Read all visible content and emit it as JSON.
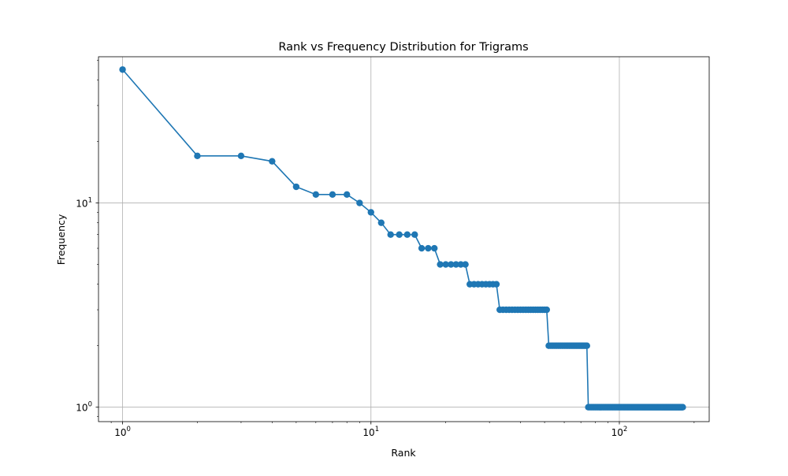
{
  "chart_data": {
    "type": "line",
    "title": "Rank vs Frequency Distribution for Trigrams",
    "xlabel": "Rank",
    "ylabel": "Frequency",
    "xscale": "log",
    "yscale": "log",
    "xlim": [
      0.8,
      230
    ],
    "ylim": [
      0.85,
      52
    ],
    "grid": true,
    "marker": "circle",
    "series_color": "#1f77b4",
    "x_ticks": [
      {
        "value": 1,
        "base": "10",
        "exp": "0"
      },
      {
        "value": 10,
        "base": "10",
        "exp": "1"
      },
      {
        "value": 100,
        "base": "10",
        "exp": "2"
      }
    ],
    "y_ticks": [
      {
        "value": 1,
        "base": "10",
        "exp": "0"
      },
      {
        "value": 10,
        "base": "10",
        "exp": "1"
      }
    ],
    "series": [
      {
        "runs": [
          {
            "from": 1,
            "to": 1,
            "y": 45
          },
          {
            "from": 2,
            "to": 3,
            "y": 17
          },
          {
            "from": 4,
            "to": 4,
            "y": 16
          },
          {
            "from": 5,
            "to": 5,
            "y": 12
          },
          {
            "from": 6,
            "to": 8,
            "y": 11
          },
          {
            "from": 9,
            "to": 9,
            "y": 10
          },
          {
            "from": 10,
            "to": 10,
            "y": 9
          },
          {
            "from": 11,
            "to": 11,
            "y": 8
          },
          {
            "from": 12,
            "to": 15,
            "y": 7
          },
          {
            "from": 16,
            "to": 18,
            "y": 6
          },
          {
            "from": 19,
            "to": 24,
            "y": 5
          },
          {
            "from": 25,
            "to": 32,
            "y": 4
          },
          {
            "from": 33,
            "to": 51,
            "y": 3
          },
          {
            "from": 52,
            "to": 74,
            "y": 2
          },
          {
            "from": 75,
            "to": 180,
            "y": 1
          }
        ]
      }
    ]
  }
}
